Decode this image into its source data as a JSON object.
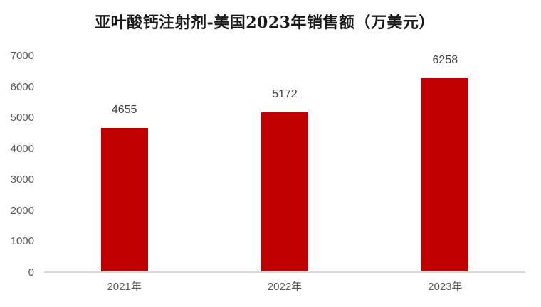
{
  "chart_data": {
    "type": "bar",
    "title": "亚叶酸钙注射剂-美国2023年销售额（万美元）",
    "categories": [
      "2021年",
      "2022年",
      "2023年"
    ],
    "values": [
      4655,
      5172,
      6258
    ],
    "data_labels": [
      "4655",
      "5172",
      "6258"
    ],
    "yticks": [
      0,
      1000,
      2000,
      3000,
      4000,
      5000,
      6000,
      7000
    ],
    "ylim": [
      0,
      7000
    ],
    "xlabel": "",
    "ylabel": "",
    "grid": false,
    "legend_position": "none",
    "colors": {
      "bar": "#c00000",
      "title_text": "#1a1a1a",
      "axis_text": "#595959",
      "data_label_text": "#404040",
      "axis_line": "#d9d9d9",
      "background": "#ffffff"
    }
  }
}
